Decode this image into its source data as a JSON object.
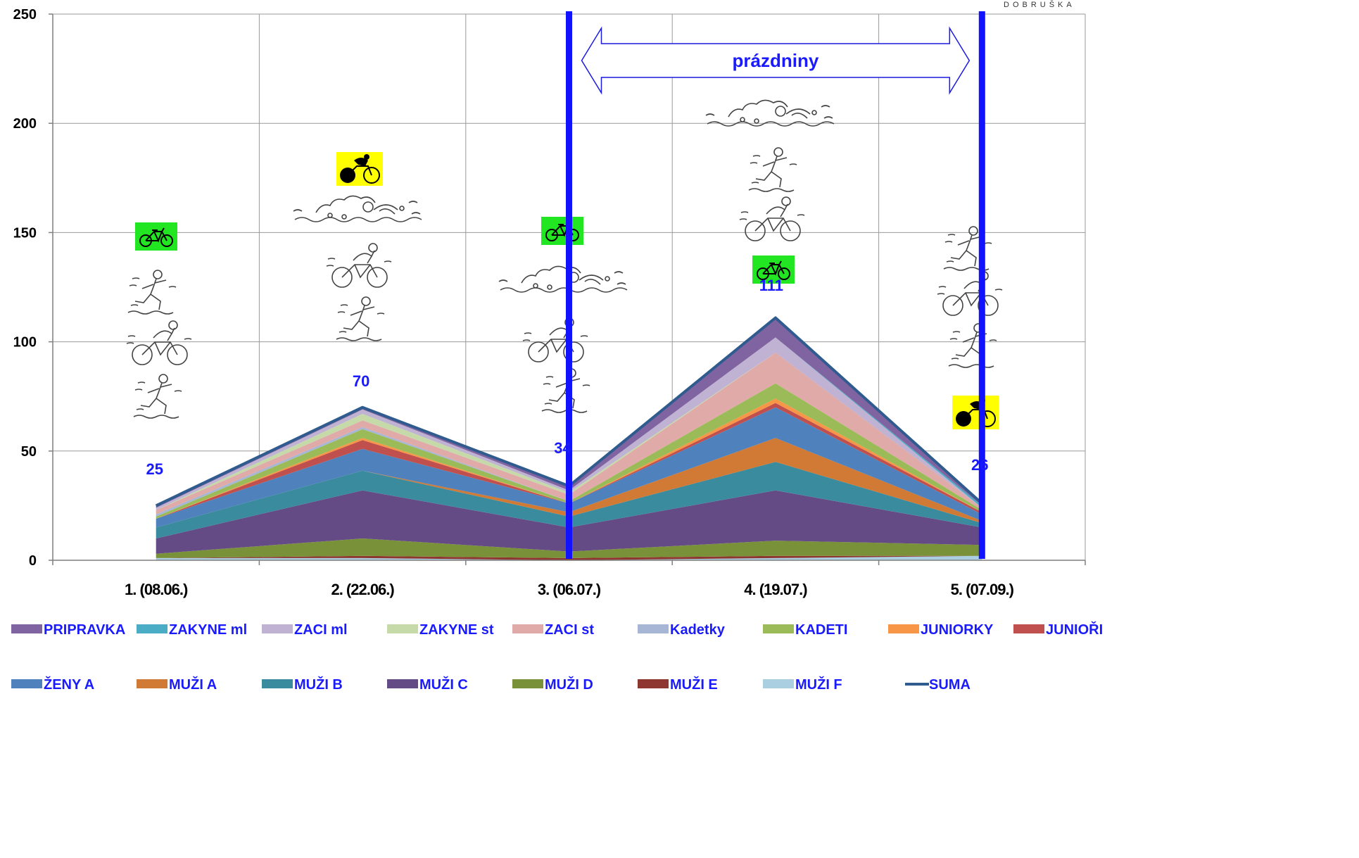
{
  "logo_text": "DOBRUŠKA",
  "chart_data": {
    "type": "area",
    "stacked": true,
    "categories": [
      "1. (08.06.)",
      "2. (22.06.)",
      "3. (06.07.)",
      "4. (19.07.)",
      "5. (07.09.)"
    ],
    "ylim": [
      0,
      250
    ],
    "yticks": [
      0,
      50,
      100,
      150,
      200,
      250
    ],
    "grid": true,
    "legend_position": "bottom",
    "series": [
      {
        "name": "MUŽI F",
        "color": "#a9cfe0",
        "values": [
          1,
          1,
          0,
          1,
          2
        ]
      },
      {
        "name": "MUŽI E",
        "color": "#8e3630",
        "values": [
          0,
          1,
          1,
          1,
          0
        ]
      },
      {
        "name": "MUŽI D",
        "color": "#79923a",
        "values": [
          2,
          8,
          3,
          7,
          5
        ]
      },
      {
        "name": "MUŽI C",
        "color": "#654b85",
        "values": [
          7,
          22,
          11,
          23,
          8
        ]
      },
      {
        "name": "MUŽI B",
        "color": "#3a8b9d",
        "values": [
          5,
          9,
          5,
          13,
          2
        ]
      },
      {
        "name": "MUŽI A",
        "color": "#d07a35",
        "values": [
          0,
          0,
          2,
          11,
          1
        ]
      },
      {
        "name": "ŽENY A",
        "color": "#4f81bd",
        "values": [
          4,
          10,
          4,
          14,
          3
        ]
      },
      {
        "name": "JUNIOŘI",
        "color": "#c0504d",
        "values": [
          0,
          4,
          0,
          2,
          1
        ]
      },
      {
        "name": "JUNIORKY",
        "color": "#f79646",
        "values": [
          0,
          1,
          0,
          2,
          0
        ]
      },
      {
        "name": "KADETI",
        "color": "#9bbb59",
        "values": [
          1,
          4,
          1,
          7,
          1
        ]
      },
      {
        "name": "Kadetky",
        "color": "#a6b6d4",
        "values": [
          1,
          1,
          0,
          0,
          0
        ]
      },
      {
        "name": "ZACI st",
        "color": "#e0aaa8",
        "values": [
          2,
          3,
          3,
          14,
          1
        ]
      },
      {
        "name": "ZAKYNE st",
        "color": "#c6d9a8",
        "values": [
          0,
          3,
          1,
          0,
          0
        ]
      },
      {
        "name": "ZACI ml",
        "color": "#bfb2d2",
        "values": [
          1,
          2,
          1,
          7,
          0
        ]
      },
      {
        "name": "ZAKYNE ml",
        "color": "#4bacc6",
        "values": [
          0,
          0,
          0,
          0,
          1
        ]
      },
      {
        "name": "PRIPRAVKA",
        "color": "#8064a2",
        "values": [
          1,
          1,
          2,
          9,
          1
        ]
      }
    ],
    "total_series": {
      "name": "SUMA",
      "color": "#2f5b8e",
      "values": [
        25,
        70,
        34,
        111,
        26
      ]
    },
    "data_labels": [
      "25",
      "70",
      "34",
      "111",
      "26"
    ],
    "annotations": {
      "holiday_label": "prázdniny",
      "marker_color": "#1212ff",
      "marker_positions": [
        2.5,
        4.5
      ]
    },
    "legend_order": [
      "PRIPRAVKA",
      "ZAKYNE ml",
      "ZACI ml",
      "ZAKYNE st",
      "ZACI st",
      "Kadetky",
      "KADETI",
      "JUNIORKY",
      "JUNIOŘI",
      "ŽENY A",
      "MUŽI A",
      "MUŽI B",
      "MUŽI C",
      "MUŽI D",
      "MUŽI E",
      "MUŽI F",
      "SUMA"
    ]
  }
}
